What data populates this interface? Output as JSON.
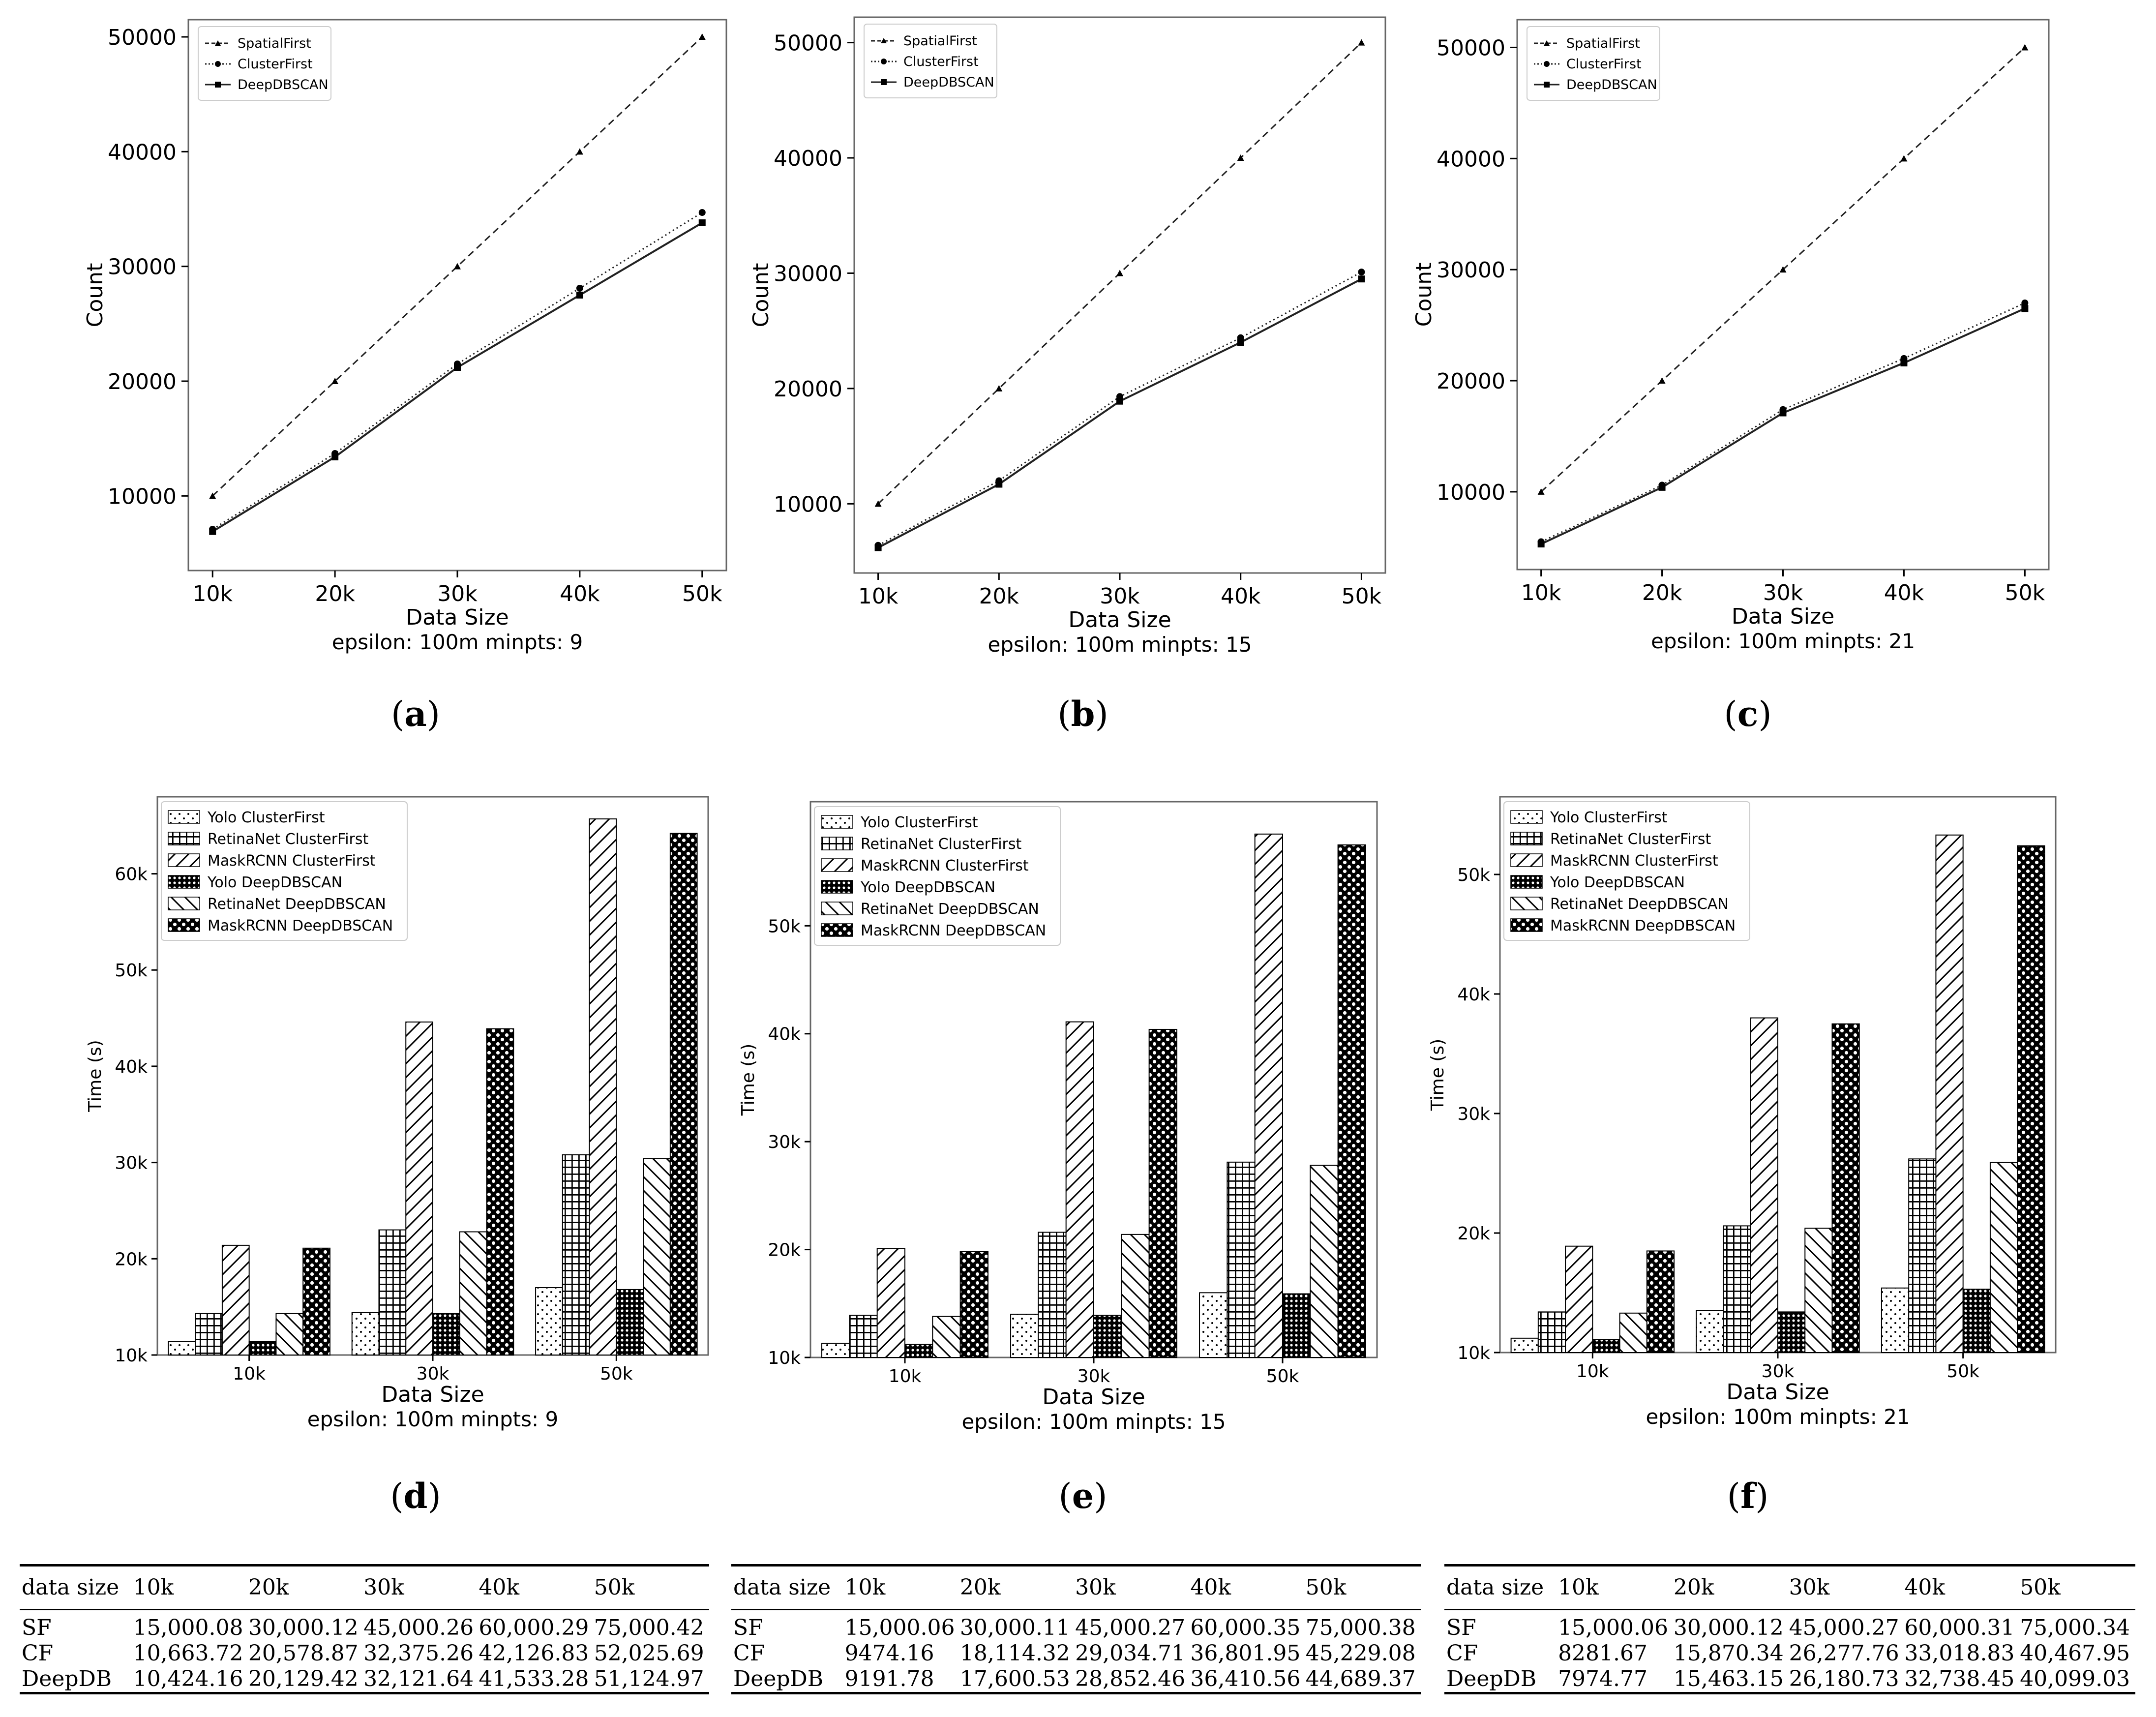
{
  "panels": [
    {
      "label_open": "(",
      "label_letter": "a",
      "label_close": ")"
    },
    {
      "label_open": "(",
      "label_letter": "b",
      "label_close": ")"
    },
    {
      "label_open": "(",
      "label_letter": "c",
      "label_close": ")"
    },
    {
      "label_open": "(",
      "label_letter": "d",
      "label_close": ")"
    },
    {
      "label_open": "(",
      "label_letter": "e",
      "label_close": ")"
    },
    {
      "label_open": "(",
      "label_letter": "f",
      "label_close": ")"
    }
  ],
  "chart_data": [
    {
      "type": "line",
      "x": [
        "10k",
        "20k",
        "30k",
        "40k",
        "50k"
      ],
      "series": [
        {
          "name": "SpatialFirst",
          "values": [
            10000,
            20000,
            30000,
            40000,
            50000
          ]
        },
        {
          "name": "ClusterFirst",
          "values": [
            7100,
            13700,
            21500,
            28100,
            34700
          ]
        },
        {
          "name": "DeepDBSCAN",
          "values": [
            6900,
            13400,
            21200,
            27500,
            33800
          ]
        }
      ],
      "xlabel": "Data Size",
      "subtitle": "epsilon: 100m minpts: 9",
      "ylabel": "Count",
      "ylim": [
        3500,
        51500
      ],
      "yticks": [
        10000,
        20000,
        30000,
        40000,
        50000
      ],
      "legend": "top-left",
      "grid": false
    },
    {
      "type": "line",
      "x": [
        "10k",
        "20k",
        "30k",
        "40k",
        "50k"
      ],
      "series": [
        {
          "name": "SpatialFirst",
          "values": [
            10000,
            20000,
            30000,
            40000,
            50000
          ]
        },
        {
          "name": "ClusterFirst",
          "values": [
            6400,
            12000,
            19300,
            24400,
            30100
          ]
        },
        {
          "name": "DeepDBSCAN",
          "values": [
            6200,
            11700,
            18900,
            24000,
            29500
          ]
        }
      ],
      "xlabel": "Data Size",
      "subtitle": "epsilon: 100m minpts: 15",
      "ylabel": "Count",
      "ylim": [
        4000,
        52200
      ],
      "yticks": [
        10000,
        20000,
        30000,
        40000,
        50000
      ],
      "legend": "top-left",
      "grid": false
    },
    {
      "type": "line",
      "x": [
        "10k",
        "20k",
        "30k",
        "40k",
        "50k"
      ],
      "series": [
        {
          "name": "SpatialFirst",
          "values": [
            10000,
            20000,
            30000,
            40000,
            50000
          ]
        },
        {
          "name": "ClusterFirst",
          "values": [
            5500,
            10600,
            17400,
            22000,
            27000
          ]
        },
        {
          "name": "DeepDBSCAN",
          "values": [
            5300,
            10400,
            17100,
            21600,
            26500
          ]
        }
      ],
      "xlabel": "Data Size",
      "subtitle": "epsilon: 100m minpts: 21",
      "ylabel": "Count",
      "ylim": [
        3000,
        52500
      ],
      "yticks": [
        10000,
        20000,
        30000,
        40000,
        50000
      ],
      "legend": "top-left",
      "grid": false
    },
    {
      "type": "bar",
      "categories": [
        "10k",
        "30k",
        "50k"
      ],
      "series": [
        {
          "name": "Yolo ClusterFirst",
          "values": [
            11400,
            14400,
            17000
          ]
        },
        {
          "name": "RetinaNet ClusterFirst",
          "values": [
            14300,
            23000,
            30800
          ]
        },
        {
          "name": "MaskRCNN ClusterFirst",
          "values": [
            21400,
            44600,
            65700
          ]
        },
        {
          "name": "Yolo DeepDBSCAN",
          "values": [
            11400,
            14300,
            16800
          ]
        },
        {
          "name": "RetinaNet DeepDBSCAN",
          "values": [
            14300,
            22800,
            30400
          ]
        },
        {
          "name": "MaskRCNN DeepDBSCAN",
          "values": [
            21100,
            43900,
            64200
          ]
        }
      ],
      "xlabel": "Data Size",
      "subtitle": "epsilon: 100m minpts: 9",
      "ylabel": "Time (s)",
      "ylim": [
        10000,
        68000
      ],
      "yticks": [
        10000,
        20000,
        30000,
        40000,
        50000,
        60000
      ],
      "ytick_labels": [
        "10k",
        "20k",
        "30k",
        "40k",
        "50k",
        "60k"
      ],
      "legend": "top-left",
      "grid": false
    },
    {
      "type": "bar",
      "categories": [
        "10k",
        "30k",
        "50k"
      ],
      "series": [
        {
          "name": "Yolo ClusterFirst",
          "values": [
            11300,
            14000,
            16000
          ]
        },
        {
          "name": "RetinaNet ClusterFirst",
          "values": [
            13900,
            21600,
            28100
          ]
        },
        {
          "name": "MaskRCNN ClusterFirst",
          "values": [
            20100,
            41100,
            58500
          ]
        },
        {
          "name": "Yolo DeepDBSCAN",
          "values": [
            11200,
            13900,
            15900
          ]
        },
        {
          "name": "RetinaNet DeepDBSCAN",
          "values": [
            13800,
            21400,
            27800
          ]
        },
        {
          "name": "MaskRCNN DeepDBSCAN",
          "values": [
            19800,
            40400,
            57500
          ]
        }
      ],
      "xlabel": "Data Size",
      "subtitle": "epsilon: 100m minpts: 15",
      "ylabel": "Time (s)",
      "ylim": [
        10000,
        61500
      ],
      "yticks": [
        10000,
        20000,
        30000,
        40000,
        50000
      ],
      "ytick_labels": [
        "10k",
        "20k",
        "30k",
        "40k",
        "50k"
      ],
      "legend": "top-left",
      "grid": false
    },
    {
      "type": "bar",
      "categories": [
        "10k",
        "30k",
        "50k"
      ],
      "series": [
        {
          "name": "Yolo ClusterFirst",
          "values": [
            11200,
            13500,
            15400
          ]
        },
        {
          "name": "RetinaNet ClusterFirst",
          "values": [
            13400,
            20600,
            26200
          ]
        },
        {
          "name": "MaskRCNN ClusterFirst",
          "values": [
            18900,
            38000,
            53300
          ]
        },
        {
          "name": "Yolo DeepDBSCAN",
          "values": [
            11100,
            13400,
            15300
          ]
        },
        {
          "name": "RetinaNet DeepDBSCAN",
          "values": [
            13300,
            20400,
            25900
          ]
        },
        {
          "name": "MaskRCNN DeepDBSCAN",
          "values": [
            18500,
            37500,
            52400
          ]
        }
      ],
      "xlabel": "Data Size",
      "subtitle": "epsilon: 100m minpts: 21",
      "ylabel": "Time (s)",
      "ylim": [
        10000,
        56500
      ],
      "yticks": [
        10000,
        20000,
        30000,
        40000,
        50000
      ],
      "ytick_labels": [
        "10k",
        "20k",
        "30k",
        "40k",
        "50k"
      ],
      "legend": "top-left",
      "grid": false
    }
  ],
  "tables": [
    {
      "header": [
        "data size",
        "10k",
        "20k",
        "30k",
        "40k",
        "50k"
      ],
      "rows": [
        [
          "SF",
          "15,000.08",
          "30,000.12",
          "45,000.26",
          "60,000.29",
          "75,000.42"
        ],
        [
          "CF",
          "10,663.72",
          "20,578.87",
          "32,375.26",
          "42,126.83",
          "52,025.69"
        ],
        [
          "DeepDB",
          "10,424.16",
          "20,129.42",
          "32,121.64",
          "41,533.28",
          "51,124.97"
        ]
      ]
    },
    {
      "header": [
        "data size",
        "10k",
        "20k",
        "30k",
        "40k",
        "50k"
      ],
      "rows": [
        [
          "SF",
          "15,000.06",
          "30,000.11",
          "45,000.27",
          "60,000.35",
          "75,000.38"
        ],
        [
          "CF",
          "9474.16",
          "18,114.32",
          "29,034.71",
          "36,801.95",
          "45,229.08"
        ],
        [
          "DeepDB",
          "9191.78",
          "17,600.53",
          "28,852.46",
          "36,410.56",
          "44,689.37"
        ]
      ]
    },
    {
      "header": [
        "data size",
        "10k",
        "20k",
        "30k",
        "40k",
        "50k"
      ],
      "rows": [
        [
          "SF",
          "15,000.06",
          "30,000.12",
          "45,000.27",
          "60,000.31",
          "75,000.34"
        ],
        [
          "CF",
          "8281.67",
          "15,870.34",
          "26,277.76",
          "33,018.83",
          "40,467.95"
        ],
        [
          "DeepDB",
          "7974.77",
          "15,463.15",
          "26,180.73",
          "32,738.45",
          "40,099.03"
        ]
      ]
    }
  ]
}
